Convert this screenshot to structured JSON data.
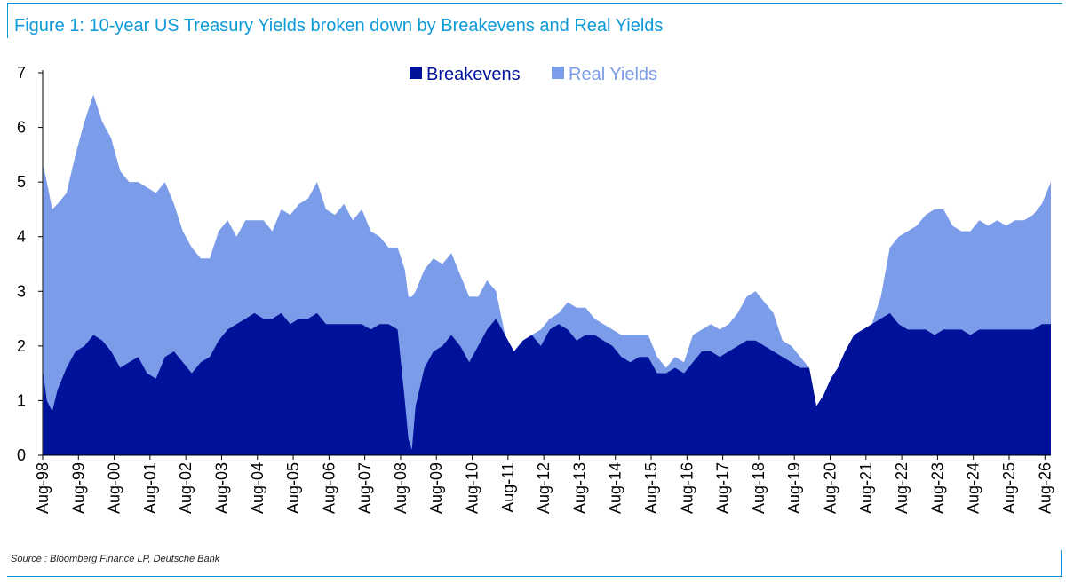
{
  "title": "Figure 1: 10-year US Treasury Yields broken down by Breakevens and Real Yields",
  "source": "Source : Bloomberg Finance LP, Deutsche Bank",
  "colors": {
    "accent": "#0d9ad8",
    "breakevens": "#00119a",
    "real_yields": "#7b9ce9"
  },
  "chart_data": {
    "type": "area",
    "stacked": true,
    "xlim": [
      1998.583,
      2026.75
    ],
    "ylim": [
      0,
      7
    ],
    "yticks": [
      0,
      1,
      2,
      3,
      4,
      5,
      6,
      7
    ],
    "x_tick_labels": [
      "Aug-98",
      "Aug-99",
      "Aug-00",
      "Aug-01",
      "Aug-02",
      "Aug-03",
      "Aug-04",
      "Aug-05",
      "Aug-06",
      "Aug-07",
      "Aug-08",
      "Aug-09",
      "Aug-10",
      "Aug-11",
      "Aug-12",
      "Aug-13",
      "Aug-14",
      "Aug-15",
      "Aug-16",
      "Aug-17",
      "Aug-18",
      "Aug-19",
      "Aug-20",
      "Aug-21",
      "Aug-22",
      "Aug-23",
      "Aug-24",
      "Aug-25",
      "Aug-26"
    ],
    "legend": {
      "position": "top-center"
    },
    "grid": false,
    "x": [
      1998.6,
      1998.7,
      1998.85,
      1999.0,
      1999.25,
      1999.5,
      1999.75,
      2000.0,
      2000.25,
      2000.5,
      2000.75,
      2001.0,
      2001.25,
      2001.5,
      2001.75,
      2002.0,
      2002.25,
      2002.5,
      2002.75,
      2003.0,
      2003.25,
      2003.5,
      2003.75,
      2004.0,
      2004.25,
      2004.5,
      2004.75,
      2005.0,
      2005.25,
      2005.5,
      2005.75,
      2006.0,
      2006.25,
      2006.5,
      2006.75,
      2007.0,
      2007.25,
      2007.5,
      2007.75,
      2008.0,
      2008.25,
      2008.5,
      2008.7,
      2008.8,
      2008.9,
      2009.0,
      2009.25,
      2009.5,
      2009.75,
      2010.0,
      2010.25,
      2010.5,
      2010.75,
      2011.0,
      2011.25,
      2011.5,
      2011.75,
      2012.0,
      2012.25,
      2012.5,
      2012.75,
      2013.0,
      2013.25,
      2013.5,
      2013.75,
      2014.0,
      2014.25,
      2014.5,
      2014.75,
      2015.0,
      2015.25,
      2015.5,
      2015.75,
      2016.0,
      2016.25,
      2016.5,
      2016.75,
      2017.0,
      2017.25,
      2017.5,
      2017.75,
      2018.0,
      2018.25,
      2018.5,
      2018.75,
      2019.0,
      2019.25,
      2019.5,
      2019.75,
      2020.0,
      2020.2,
      2020.4,
      2020.6,
      2020.8,
      2021.0,
      2021.25,
      2021.5,
      2021.75,
      2022.0,
      2022.25,
      2022.5,
      2022.75,
      2023.0,
      2023.25,
      2023.5,
      2023.75,
      2024.0,
      2024.25,
      2024.5,
      2024.75,
      2025.0,
      2025.25,
      2025.5,
      2025.75,
      2026.0,
      2026.25,
      2026.5,
      2026.75
    ],
    "series": [
      {
        "name": "Breakevens",
        "values": [
          1.5,
          1.0,
          0.8,
          1.2,
          1.6,
          1.9,
          2.0,
          2.2,
          2.1,
          1.9,
          1.6,
          1.7,
          1.8,
          1.5,
          1.4,
          1.8,
          1.9,
          1.7,
          1.5,
          1.7,
          1.8,
          2.1,
          2.3,
          2.4,
          2.5,
          2.6,
          2.5,
          2.5,
          2.6,
          2.4,
          2.5,
          2.5,
          2.6,
          2.4,
          2.4,
          2.4,
          2.4,
          2.4,
          2.3,
          2.4,
          2.4,
          2.3,
          1.0,
          0.3,
          0.1,
          0.9,
          1.6,
          1.9,
          2.0,
          2.2,
          2.0,
          1.7,
          2.0,
          2.3,
          2.5,
          2.2,
          1.9,
          2.1,
          2.2,
          2.0,
          2.3,
          2.4,
          2.3,
          2.1,
          2.2,
          2.2,
          2.1,
          2.0,
          1.8,
          1.7,
          1.8,
          1.8,
          1.5,
          1.5,
          1.6,
          1.5,
          1.7,
          1.9,
          1.9,
          1.8,
          1.9,
          2.0,
          2.1,
          2.1,
          2.0,
          1.9,
          1.8,
          1.7,
          1.6,
          1.6,
          0.9,
          1.1,
          1.4,
          1.6,
          1.9,
          2.2,
          2.3,
          2.4,
          2.5,
          2.6,
          2.4,
          2.3,
          2.3,
          2.3,
          2.2,
          2.3,
          2.3,
          2.3,
          2.2,
          2.3,
          2.3,
          2.3,
          2.3,
          2.3,
          2.3,
          2.3,
          2.4,
          2.4
        ]
      },
      {
        "name": "Real Yields",
        "values": [
          3.8,
          4.0,
          3.7,
          3.4,
          3.2,
          3.6,
          4.1,
          4.4,
          4.0,
          3.9,
          3.6,
          3.3,
          3.2,
          3.4,
          3.4,
          3.2,
          2.7,
          2.4,
          2.3,
          1.9,
          1.8,
          2.0,
          2.0,
          1.6,
          1.8,
          1.7,
          1.8,
          1.6,
          1.9,
          2.0,
          2.1,
          2.2,
          2.4,
          2.1,
          2.0,
          2.2,
          1.9,
          2.1,
          1.8,
          1.6,
          1.4,
          1.5,
          2.4,
          2.6,
          2.8,
          2.1,
          1.8,
          1.7,
          1.5,
          1.5,
          1.3,
          1.2,
          0.9,
          0.9,
          0.5,
          0.0,
          0.0,
          0.0,
          0.0,
          0.3,
          0.2,
          0.2,
          0.5,
          0.6,
          0.5,
          0.3,
          0.3,
          0.3,
          0.4,
          0.5,
          0.4,
          0.4,
          0.3,
          0.1,
          0.2,
          0.2,
          0.5,
          0.4,
          0.5,
          0.5,
          0.5,
          0.6,
          0.8,
          0.9,
          0.8,
          0.7,
          0.3,
          0.3,
          0.2,
          0.0,
          0.0,
          0.0,
          0.0,
          0.0,
          0.0,
          0.0,
          0.0,
          0.0,
          0.4,
          1.2,
          1.6,
          1.8,
          1.9,
          2.1,
          2.3,
          2.2,
          1.9,
          1.8,
          1.9,
          2.0,
          1.9,
          2.0,
          1.9,
          2.0,
          2.0,
          2.1,
          2.2,
          2.6
        ]
      }
    ]
  }
}
